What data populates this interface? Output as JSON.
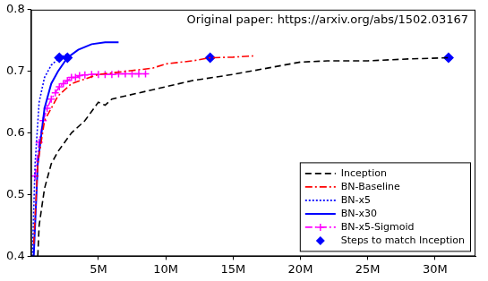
{
  "chart_data": {
    "type": "line",
    "annotation": "Original paper: https://arxiv.org/abs/1502.03167",
    "xlim": [
      0,
      33000000
    ],
    "xticks": [
      {
        "value": 5000000,
        "label": "5M"
      },
      {
        "value": 10000000,
        "label": "10M"
      },
      {
        "value": 15000000,
        "label": "15M"
      },
      {
        "value": 20000000,
        "label": "20M"
      },
      {
        "value": 25000000,
        "label": "25M"
      },
      {
        "value": 30000000,
        "label": "30M"
      }
    ],
    "ylim": [
      0.4,
      0.8
    ],
    "yticks": [
      0.4,
      0.5,
      0.6,
      0.7,
      0.8
    ],
    "grid": false,
    "legend": "lower right",
    "series": [
      {
        "name": "Inception",
        "color": "#000000",
        "line_style": "dashed",
        "x": [
          500000,
          600000,
          1000000,
          1500000,
          2000000,
          3000000,
          4000000,
          4500000,
          5000000,
          5500000,
          6000000,
          8000000,
          10000000,
          12000000,
          15000000,
          18000000,
          20000000,
          22000000,
          25000000,
          28000000,
          31000000
        ],
        "values": [
          0.4,
          0.45,
          0.51,
          0.55,
          0.57,
          0.6,
          0.62,
          0.635,
          0.65,
          0.645,
          0.655,
          0.665,
          0.675,
          0.685,
          0.695,
          0.707,
          0.715,
          0.717,
          0.717,
          0.72,
          0.722
        ]
      },
      {
        "name": "BN-Baseline",
        "color": "#ff0000",
        "line_style": "dashdot",
        "x": [
          200000,
          500000,
          1000000,
          2000000,
          3000000,
          5000000,
          7000000,
          9000000,
          10000000,
          12000000,
          13300000,
          15000000,
          16500000
        ],
        "values": [
          0.42,
          0.55,
          0.62,
          0.66,
          0.68,
          0.695,
          0.7,
          0.705,
          0.712,
          0.717,
          0.722,
          0.723,
          0.725
        ]
      },
      {
        "name": "BN-x5",
        "color": "#0000ff",
        "line_style": "dotted",
        "x": [
          100000,
          300000,
          600000,
          1000000,
          1500000,
          2100000,
          2700000
        ],
        "values": [
          0.4,
          0.55,
          0.65,
          0.69,
          0.71,
          0.722,
          0.728
        ]
      },
      {
        "name": "BN-x30",
        "color": "#0000ff",
        "line_style": "solid",
        "x": [
          200000,
          500000,
          1000000,
          1500000,
          2000000,
          2700000,
          3500000,
          4500000,
          5500000,
          6500000
        ],
        "values": [
          0.4,
          0.55,
          0.64,
          0.68,
          0.7,
          0.722,
          0.735,
          0.744,
          0.747,
          0.747
        ]
      },
      {
        "name": "BN-x5-Sigmoid",
        "color": "#ff00ff",
        "line_style": "dashdot",
        "marker": "cross",
        "x": [
          300000,
          600000,
          900000,
          1200000,
          1500000,
          1800000,
          2100000,
          2400000,
          2700000,
          3000000,
          3300000,
          3600000,
          4000000,
          4500000,
          5000000,
          5500000,
          6000000,
          6500000,
          7000000,
          7500000,
          8000000,
          8500000
        ],
        "values": [
          0.53,
          0.585,
          0.62,
          0.64,
          0.655,
          0.665,
          0.675,
          0.68,
          0.685,
          0.69,
          0.69,
          0.693,
          0.694,
          0.695,
          0.695,
          0.695,
          0.695,
          0.696,
          0.696,
          0.696,
          0.696,
          0.696
        ]
      },
      {
        "name": "Steps to match Inception",
        "color": "#0000ff",
        "type": "scatter",
        "marker": "diamond",
        "x": [
          2100000,
          2700000,
          13300000,
          31000000
        ],
        "values": [
          0.722,
          0.722,
          0.722,
          0.722
        ]
      }
    ]
  }
}
